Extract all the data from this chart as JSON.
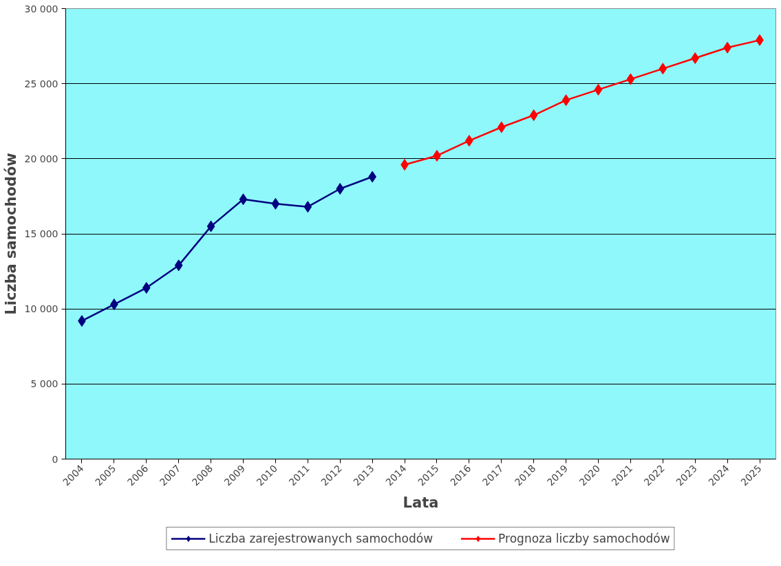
{
  "chart_data": {
    "type": "line",
    "xlabel": "Lata",
    "ylabel": "Liczba samochodów",
    "categories": [
      "2004",
      "2005",
      "2006",
      "2007",
      "2008",
      "2009",
      "2010",
      "2011",
      "2012",
      "2013",
      "2014",
      "2015",
      "2016",
      "2017",
      "2018",
      "2019",
      "2020",
      "2021",
      "2022",
      "2023",
      "2024",
      "2025"
    ],
    "series": [
      {
        "name": "Liczba zarejestrowanych samochodów",
        "color": "#000080",
        "values": [
          9200,
          10300,
          11400,
          12900,
          15500,
          17300,
          17000,
          16800,
          18000,
          18800,
          null,
          null,
          null,
          null,
          null,
          null,
          null,
          null,
          null,
          null,
          null,
          null
        ]
      },
      {
        "name": "Prognoza liczby samochodów",
        "color": "#ff0000",
        "values": [
          null,
          null,
          null,
          null,
          null,
          null,
          null,
          null,
          null,
          null,
          19600,
          20200,
          21200,
          22100,
          22900,
          23900,
          24600,
          25300,
          26000,
          26700,
          27400,
          27900
        ]
      }
    ],
    "ylim": [
      0,
      30000
    ],
    "yticks": [
      0,
      {
        "value": 5000,
        "label": "5 000"
      },
      {
        "value": 10000,
        "label": "10 000"
      },
      {
        "value": 15000,
        "label": "15 000"
      },
      {
        "value": 20000,
        "label": "20 000"
      },
      {
        "value": 25000,
        "label": "25 000"
      },
      {
        "value": 30000,
        "label": "30 000"
      }
    ],
    "grid": "y",
    "legend": "bottom",
    "marker": "diamond",
    "line_style": "solid"
  }
}
